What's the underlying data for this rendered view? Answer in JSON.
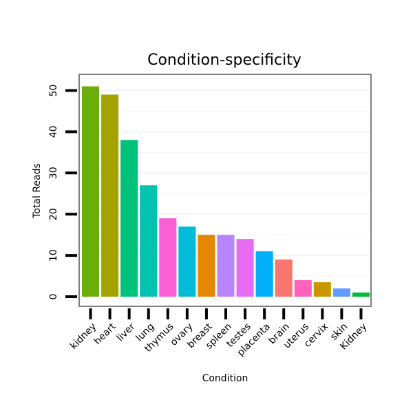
{
  "chart_data": {
    "type": "bar",
    "title": "Condition-specificity",
    "xlabel": "Condition",
    "ylabel": "Total Reads",
    "ylim": [
      0,
      54
    ],
    "yticks": [
      0,
      10,
      20,
      30,
      40,
      50
    ],
    "grid": true,
    "legend": "none",
    "categories": [
      "kidney",
      "heart",
      "liver",
      "lung",
      "thymus",
      "ovary",
      "breast",
      "spleen",
      "testes",
      "placenta",
      "brain",
      "uterus",
      "cervix",
      "skin",
      "Kidney"
    ],
    "values": [
      51,
      49,
      38,
      27,
      19,
      17,
      15,
      15,
      14,
      11,
      9,
      4,
      3.5,
      2,
      1
    ],
    "colors": [
      "#6AAE0A",
      "#A3A300",
      "#00C27A",
      "#00C3B0",
      "#FA61D5",
      "#00BCD8",
      "#E58700",
      "#B984FF",
      "#E76BF3",
      "#00B0F6",
      "#F8766D",
      "#FF62BC",
      "#C99800",
      "#619CFF",
      "#00BA38"
    ]
  }
}
